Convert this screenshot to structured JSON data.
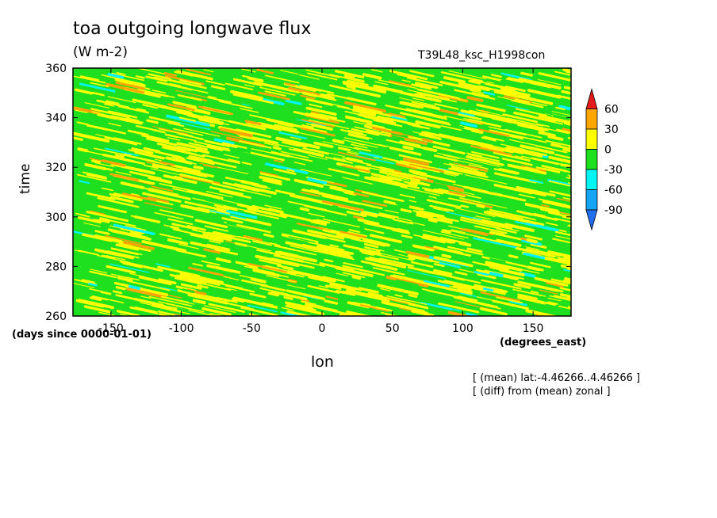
{
  "chart_data": {
    "type": "heatmap",
    "title": "toa outgoing longwave flux",
    "units": "(W m-2)",
    "run_label": "T39L48_ksc_H1998con",
    "xlabel": "lon",
    "ylabel": "time",
    "x_units": "(degrees_east)",
    "y_units": "(days since 0000-01-01)",
    "xlim": [
      -177,
      177
    ],
    "ylim": [
      260,
      360
    ],
    "x_ticks": [
      -150,
      -100,
      -50,
      0,
      50,
      100,
      150
    ],
    "y_ticks": [
      260,
      280,
      300,
      320,
      340,
      360
    ],
    "x_tick_labels": [
      "-150",
      "-100",
      "-50",
      "0",
      "50",
      "100",
      "150"
    ],
    "y_tick_labels": [
      "260",
      "280",
      "300",
      "320",
      "340",
      "360"
    ],
    "colorbar": {
      "levels": [
        -90,
        -60,
        -30,
        0,
        30,
        60
      ],
      "labels": [
        "-90",
        "-60",
        "-30",
        "0",
        "30",
        "60"
      ],
      "colors": [
        "#1f6ff0",
        "#16a5f5",
        "#00f5f5",
        "#1ee01e",
        "#ffff00",
        "#ffa500",
        "#e61b1b"
      ]
    },
    "notes": [
      "[ (mean) lat:-4.46266..4.46266 ]",
      "[ (diff) from (mean) zonal ]"
    ]
  }
}
